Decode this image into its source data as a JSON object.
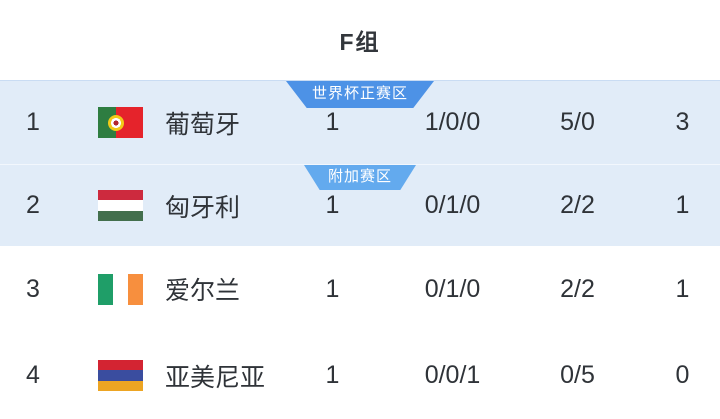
{
  "header": {
    "title": "F组"
  },
  "zones": {
    "world_cup": {
      "label": "世界杯正赛区",
      "color": "#4d92e6"
    },
    "playoff": {
      "label": "附加赛区",
      "color": "#63aaee"
    }
  },
  "colors": {
    "row_highlight": "#e1ecf8",
    "text": "#2f3338"
  },
  "table": {
    "rows": [
      {
        "rank": "1",
        "team": "葡萄牙",
        "flag": {
          "name": "portugal-flag",
          "direction": "v",
          "stripes": [
            "#2e7d41",
            "#e5232b"
          ],
          "widths": [
            2,
            3
          ],
          "emblem": true
        },
        "played": "1",
        "record": "1/0/0",
        "goals": "5/0",
        "points": "3",
        "zone": {
          "label": "世界杯正赛区",
          "color": "#4d92e6"
        }
      },
      {
        "rank": "2",
        "team": "匈牙利",
        "flag": {
          "name": "hungary-flag",
          "direction": "h",
          "stripes": [
            "#cd2a3e",
            "#ffffff",
            "#436f4d"
          ]
        },
        "played": "1",
        "record": "0/1/0",
        "goals": "2/2",
        "points": "1",
        "zone": {
          "label": "附加赛区",
          "color": "#63aaee"
        }
      },
      {
        "rank": "3",
        "team": "爱尔兰",
        "flag": {
          "name": "ireland-flag",
          "direction": "v",
          "stripes": [
            "#1f9e68",
            "#ffffff",
            "#f78f3e"
          ]
        },
        "played": "1",
        "record": "0/1/0",
        "goals": "2/2",
        "points": "1",
        "zone": null
      },
      {
        "rank": "4",
        "team": "亚美尼亚",
        "flag": {
          "name": "armenia-flag",
          "direction": "h",
          "stripes": [
            "#d32432",
            "#3a4d9f",
            "#eda523"
          ]
        },
        "played": "1",
        "record": "0/0/1",
        "goals": "0/5",
        "points": "0",
        "zone": null
      }
    ]
  }
}
